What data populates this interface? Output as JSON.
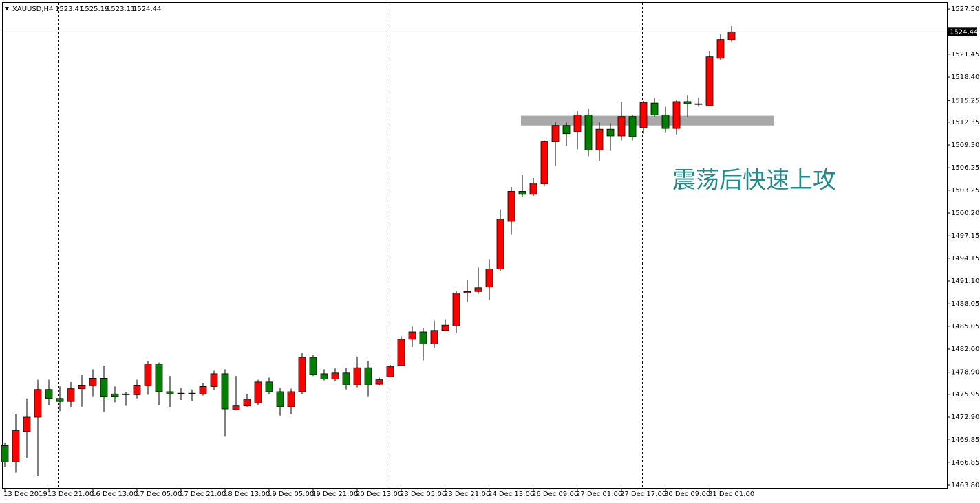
{
  "chart_data": {
    "type": "candlestick",
    "symbol": "XAUUSD,H4",
    "annotation": "震荡后快速上攻",
    "categories": [
      "13 Dec 2019",
      null,
      null,
      null,
      "13 Dec 21:00",
      null,
      null,
      null,
      "16 Dec 13:00",
      null,
      null,
      null,
      "17 Dec 05:00",
      null,
      null,
      null,
      "17 Dec 21:00",
      null,
      null,
      null,
      "18 Dec 13:00",
      null,
      null,
      null,
      "19 Dec 05:00",
      null,
      null,
      null,
      "19 Dec 21:00",
      null,
      null,
      null,
      "20 Dec 13:00",
      null,
      null,
      null,
      "23 Dec 05:00",
      null,
      null,
      null,
      "23 Dec 21:00",
      null,
      null,
      null,
      "24 Dec 13:00",
      null,
      null,
      null,
      "26 Dec 09:00",
      null,
      null,
      null,
      "27 Dec 01:00",
      null,
      null,
      null,
      "27 Dec 17:00",
      null,
      null,
      null,
      "30 Dec 09:00",
      null,
      null,
      null,
      "31 Dec 01:00",
      null,
      null
    ],
    "open": [
      1469.1,
      1466.9,
      1471.0,
      1472.9,
      1476.6,
      1475.4,
      1475.0,
      1476.7,
      1477.1,
      1478.1,
      1476.0,
      1475.9,
      1475.9,
      1477.1,
      1480.0,
      1476.3,
      1476.1,
      1476.1,
      1476.0,
      1477.0,
      1478.7,
      1473.9,
      1474.4,
      1474.8,
      1477.6,
      1476.3,
      1474.3,
      1476.3,
      1480.9,
      1478.7,
      1478.0,
      1478.8,
      1477.2,
      1479.5,
      1477.3,
      1478.3,
      1479.8,
      1483.3,
      1484.3,
      1482.7,
      1484.5,
      1485.1,
      1489.5,
      1489.7,
      1490.3,
      1492.7,
      1499.1,
      1503.1,
      1502.7,
      1504.1,
      1509.8,
      1511.9,
      1511.1,
      1513.3,
      1508.6,
      1511.4,
      1510.5,
      1513.1,
      1511.6,
      1514.9,
      1513.3,
      1511.5,
      1515.1,
      1514.8,
      1514.6,
      1520.9,
      1523.41
    ],
    "high": [
      1469.4,
      1473.3,
      1475.4,
      1477.9,
      1477.9,
      1477.0,
      1477.6,
      1478.6,
      1479.3,
      1479.7,
      1477.0,
      1476.3,
      1477.9,
      1480.4,
      1480.2,
      1478.4,
      1476.8,
      1476.6,
      1477.4,
      1479.1,
      1479.3,
      1478.4,
      1476.0,
      1477.9,
      1478.2,
      1476.8,
      1476.7,
      1481.5,
      1481.2,
      1479.3,
      1479.4,
      1479.5,
      1481.0,
      1480.4,
      1478.2,
      1479.9,
      1483.7,
      1485.0,
      1484.8,
      1485.8,
      1486.0,
      1489.8,
      1491.2,
      1492.9,
      1494.0,
      1500.7,
      1503.7,
      1505.3,
      1504.9,
      1509.9,
      1512.4,
      1512.3,
      1513.8,
      1514.2,
      1512.3,
      1512.2,
      1515.1,
      1513.3,
      1515.2,
      1515.6,
      1514.5,
      1515.3,
      1516.0,
      1515.6,
      1521.9,
      1524.1,
      1525.19
    ],
    "low": [
      1466.2,
      1465.5,
      1467.4,
      1465.0,
      1474.5,
      1473.7,
      1474.2,
      1474.3,
      1475.6,
      1473.6,
      1474.9,
      1474.4,
      1475.4,
      1475.9,
      1474.5,
      1474.2,
      1475.2,
      1475.1,
      1475.8,
      1476.5,
      1470.3,
      1473.8,
      1474.3,
      1474.5,
      1476.0,
      1473.1,
      1473.3,
      1476.0,
      1478.4,
      1477.8,
      1477.7,
      1476.6,
      1476.9,
      1475.6,
      1477.1,
      1478.3,
      1479.8,
      1482.3,
      1480.5,
      1482.2,
      1484.4,
      1484.1,
      1488.3,
      1489.4,
      1488.6,
      1492.4,
      1497.3,
      1502.3,
      1502.5,
      1503.9,
      1506.5,
      1509.2,
      1508.7,
      1507.8,
      1507.1,
      1508.5,
      1509.9,
      1509.9,
      1510.8,
      1513.1,
      1511.0,
      1510.7,
      1513.1,
      1514.5,
      1514.6,
      1520.7,
      1523.11
    ],
    "close": [
      1466.9,
      1471.1,
      1472.9,
      1476.6,
      1475.4,
      1475.0,
      1476.7,
      1477.1,
      1478.1,
      1475.6,
      1475.6,
      1476.0,
      1477.1,
      1480.0,
      1476.3,
      1476.0,
      1476.1,
      1476.0,
      1477.0,
      1478.7,
      1474.0,
      1474.4,
      1475.3,
      1477.6,
      1476.3,
      1474.3,
      1476.3,
      1480.9,
      1478.6,
      1478.0,
      1478.8,
      1477.2,
      1479.5,
      1477.2,
      1477.9,
      1479.7,
      1483.3,
      1484.3,
      1482.7,
      1484.5,
      1485.2,
      1489.5,
      1489.7,
      1490.2,
      1492.7,
      1499.4,
      1503.1,
      1502.7,
      1504.2,
      1509.8,
      1511.9,
      1510.8,
      1513.3,
      1508.6,
      1511.4,
      1510.5,
      1513.1,
      1510.4,
      1515.0,
      1513.3,
      1511.5,
      1515.1,
      1514.8,
      1514.8,
      1521.1,
      1523.4,
      1524.44
    ],
    "up_color": "#ff0000",
    "down_color": "#008000",
    "zone": {
      "low": 1511.9,
      "high": 1513.2,
      "color": "#a9a9a9"
    },
    "ylim": [
      1463.43,
      1528.24
    ],
    "yticks": [
      {
        "value": 1527.5,
        "label": "1527.50"
      },
      1521.45,
      {
        "value": 1518.4,
        "label": "1518.40"
      },
      1515.25,
      1512.35,
      {
        "value": 1509.3,
        "label": "1509.30"
      },
      1506.25,
      1503.25,
      {
        "value": 1500.2,
        "label": "1500.20"
      },
      1497.15,
      1494.15,
      {
        "value": 1491.1,
        "label": "1491.10"
      },
      1488.05,
      1485.05,
      {
        "value": 1482,
        "label": "1482.00"
      },
      {
        "value": 1478.9,
        "label": "1478.90"
      },
      1475.95,
      {
        "value": 1472.9,
        "label": "1472.90"
      },
      1469.85,
      1466.85,
      {
        "value": 1463.8,
        "label": "1463.80"
      }
    ]
  }
}
